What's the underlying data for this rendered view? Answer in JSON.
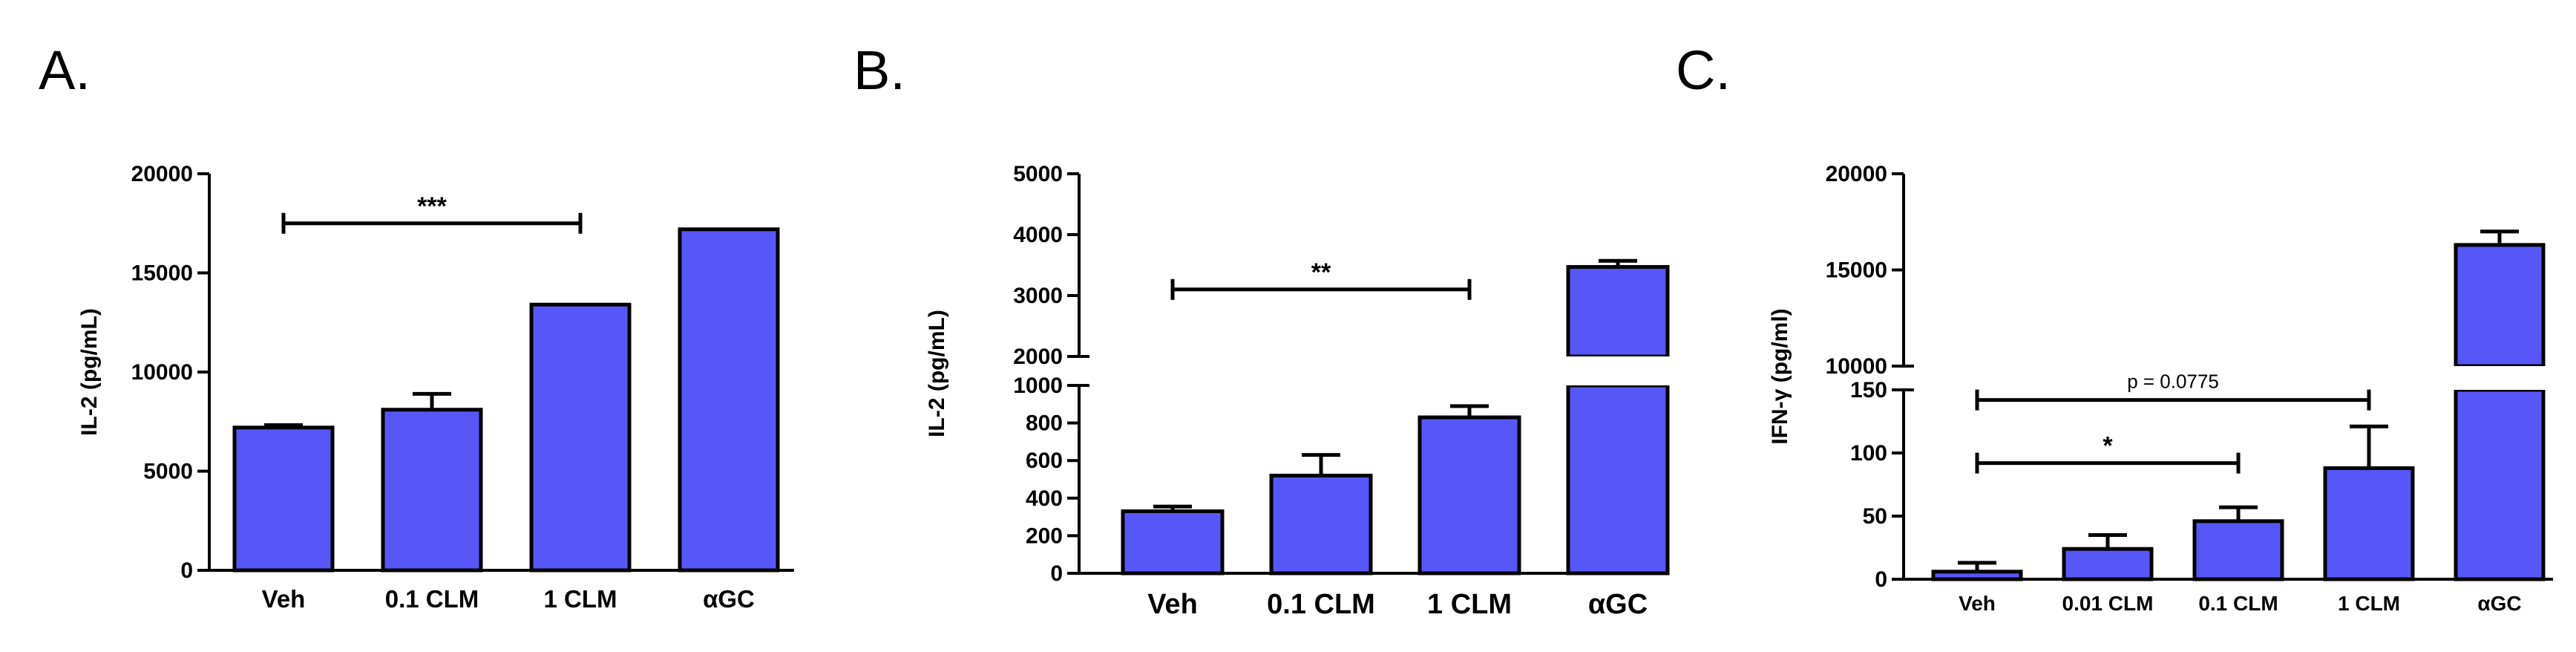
{
  "colors": {
    "bar_fill": "#5757f8",
    "bar_stroke": "#000000",
    "background": "#ffffff"
  },
  "chart_data": [
    {
      "panel": "A.",
      "type": "bar",
      "ylabel": "IL-2 (pg/mL)",
      "categories": [
        "Veh",
        "0.1 CLM",
        "1 CLM",
        "αGC"
      ],
      "values": [
        7200,
        8100,
        13400,
        17200
      ],
      "errors": [
        120,
        800,
        0,
        0
      ],
      "ylim": [
        0,
        20000
      ],
      "yticks": [
        0,
        5000,
        10000,
        15000,
        20000
      ],
      "yticklabels": [
        "0",
        "5000",
        "10000",
        "15000",
        "20000"
      ],
      "significance": [
        {
          "from": 0,
          "to": 2,
          "label": "***",
          "y": 17500
        }
      ]
    },
    {
      "panel": "B.",
      "type": "bar",
      "ylabel": "IL-2 (pg/mL)",
      "categories": [
        "Veh",
        "0.1 CLM",
        "1 CLM",
        "αGC"
      ],
      "values": [
        330,
        520,
        830,
        3470
      ],
      "errors": [
        25,
        110,
        60,
        100
      ],
      "axis_break": true,
      "lower_ylim": [
        0,
        1000
      ],
      "upper_ylim": [
        2000,
        5000
      ],
      "lower_yticks": [
        0,
        200,
        400,
        600,
        800,
        1000
      ],
      "lower_yticklabels": [
        "0",
        "200",
        "400",
        "600",
        "800",
        "1000"
      ],
      "upper_yticks": [
        2000,
        3000,
        4000,
        5000
      ],
      "upper_yticklabels": [
        "2000",
        "3000",
        "4000",
        "5000"
      ],
      "significance": [
        {
          "from": 0,
          "to": 2,
          "label": "**",
          "y": 3100
        }
      ]
    },
    {
      "panel": "C.",
      "type": "bar",
      "ylabel": "IFN-γ (pg/ml)",
      "categories": [
        "Veh",
        "0.01 CLM",
        "0.1 CLM",
        "1 CLM",
        "αGC"
      ],
      "values": [
        6,
        24,
        46,
        88,
        16300
      ],
      "errors": [
        7,
        11,
        11,
        33,
        700
      ],
      "axis_break": true,
      "lower_ylim": [
        0,
        150
      ],
      "upper_ylim": [
        10000,
        20000
      ],
      "lower_yticks": [
        0,
        50,
        100,
        150
      ],
      "lower_yticklabels": [
        "0",
        "50",
        "100",
        "150"
      ],
      "upper_yticks": [
        10000,
        15000,
        20000
      ],
      "upper_yticklabels": [
        "10000",
        "15000",
        "20000"
      ],
      "significance": [
        {
          "from": 0,
          "to": 3,
          "label": "p = 0.0775",
          "y": 142,
          "label_style": "p"
        },
        {
          "from": 0,
          "to": 2,
          "label": "*",
          "y": 92
        }
      ]
    }
  ]
}
